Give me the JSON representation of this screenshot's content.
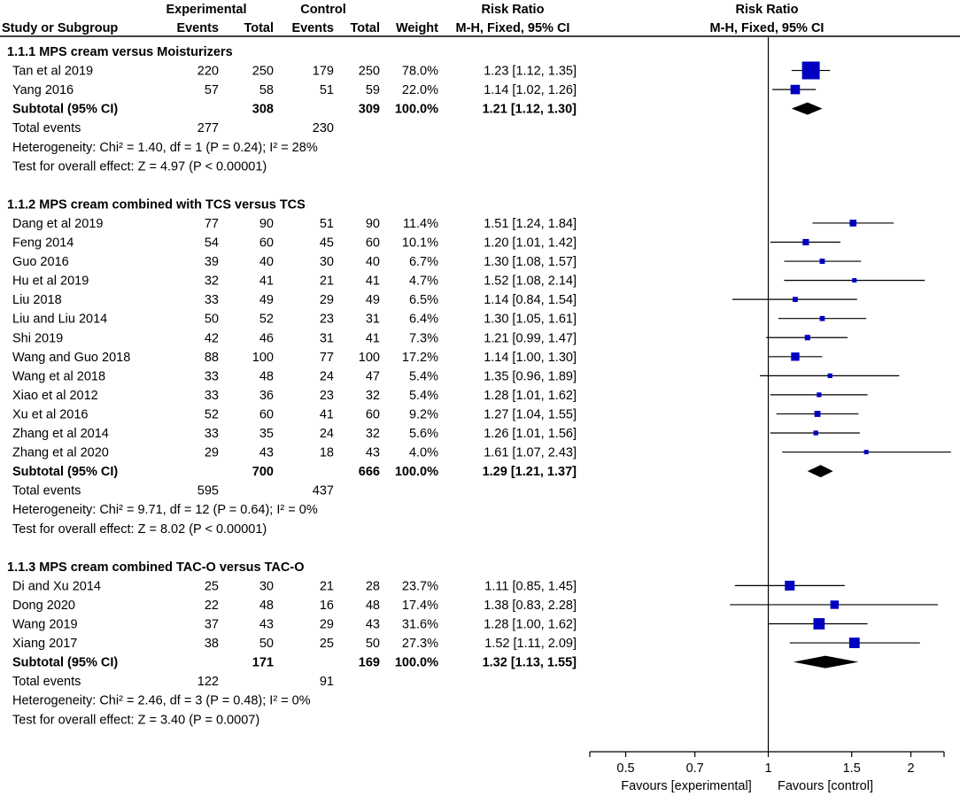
{
  "header": {
    "experimental": "Experimental",
    "control": "Control",
    "risk_ratio_table": "Risk Ratio",
    "risk_ratio_plot": "Risk Ratio",
    "study_or_subgroup": "Study or Subgroup",
    "events": "Events",
    "total": "Total",
    "weight": "Weight",
    "method_table": "M-H, Fixed, 95% CI",
    "method_plot": "M-H, Fixed, 95% CI"
  },
  "chart_data": {
    "type": "forest",
    "scale": "log",
    "xlim": [
      0.42,
      2.35
    ],
    "null_value": 1,
    "x_ticks": [
      "0.5",
      "0.7",
      "1",
      "1.5",
      "2"
    ],
    "x_tick_values": [
      0.5,
      0.7,
      1,
      1.5,
      2
    ],
    "favours_left": "Favours [experimental]",
    "favours_right": "Favours [control]",
    "rows": [
      {
        "kind": "heading",
        "label": "1.1.1 MPS cream versus Moisturizers"
      },
      {
        "kind": "study",
        "label": "Tan et al 2019",
        "e_events": "220",
        "e_total": "250",
        "c_events": "179",
        "c_total": "250",
        "weight": "78.0%",
        "ci": "1.23 [1.12, 1.35]",
        "rr": 1.23,
        "lo": 1.12,
        "hi": 1.35,
        "w": 78.0
      },
      {
        "kind": "study",
        "label": "Yang 2016",
        "e_events": "57",
        "e_total": "58",
        "c_events": "51",
        "c_total": "59",
        "weight": "22.0%",
        "ci": "1.14 [1.02, 1.26]",
        "rr": 1.14,
        "lo": 1.02,
        "hi": 1.26,
        "w": 22.0
      },
      {
        "kind": "subtotal",
        "label": "Subtotal (95% CI)",
        "e_total": "308",
        "c_total": "309",
        "weight": "100.0%",
        "ci": "1.21 [1.12, 1.30]",
        "rr": 1.21,
        "lo": 1.12,
        "hi": 1.3
      },
      {
        "kind": "events",
        "label": "Total events",
        "e_events": "277",
        "c_events": "230"
      },
      {
        "kind": "note",
        "label": "Heterogeneity: Chi² = 1.40, df = 1 (P = 0.24); I² = 28%"
      },
      {
        "kind": "note",
        "label": "Test for overall effect: Z = 4.97 (P < 0.00001)"
      },
      {
        "kind": "blank"
      },
      {
        "kind": "heading",
        "label": "1.1.2 MPS cream combined with TCS versus TCS"
      },
      {
        "kind": "study",
        "label": "Dang et al 2019",
        "e_events": "77",
        "e_total": "90",
        "c_events": "51",
        "c_total": "90",
        "weight": "11.4%",
        "ci": "1.51 [1.24, 1.84]",
        "rr": 1.51,
        "lo": 1.24,
        "hi": 1.84,
        "w": 11.4
      },
      {
        "kind": "study",
        "label": "Feng 2014",
        "e_events": "54",
        "e_total": "60",
        "c_events": "45",
        "c_total": "60",
        "weight": "10.1%",
        "ci": "1.20 [1.01, 1.42]",
        "rr": 1.2,
        "lo": 1.01,
        "hi": 1.42,
        "w": 10.1
      },
      {
        "kind": "study",
        "label": "Guo 2016",
        "e_events": "39",
        "e_total": "40",
        "c_events": "30",
        "c_total": "40",
        "weight": "6.7%",
        "ci": "1.30 [1.08, 1.57]",
        "rr": 1.3,
        "lo": 1.08,
        "hi": 1.57,
        "w": 6.7
      },
      {
        "kind": "study",
        "label": "Hu et al 2019",
        "e_events": "32",
        "e_total": "41",
        "c_events": "21",
        "c_total": "41",
        "weight": "4.7%",
        "ci": "1.52 [1.08, 2.14]",
        "rr": 1.52,
        "lo": 1.08,
        "hi": 2.14,
        "w": 4.7
      },
      {
        "kind": "study",
        "label": "Liu 2018",
        "e_events": "33",
        "e_total": "49",
        "c_events": "29",
        "c_total": "49",
        "weight": "6.5%",
        "ci": "1.14 [0.84, 1.54]",
        "rr": 1.14,
        "lo": 0.84,
        "hi": 1.54,
        "w": 6.5
      },
      {
        "kind": "study",
        "label": "Liu and Liu 2014",
        "e_events": "50",
        "e_total": "52",
        "c_events": "23",
        "c_total": "31",
        "weight": "6.4%",
        "ci": "1.30 [1.05, 1.61]",
        "rr": 1.3,
        "lo": 1.05,
        "hi": 1.61,
        "w": 6.4
      },
      {
        "kind": "study",
        "label": "Shi 2019",
        "e_events": "42",
        "e_total": "46",
        "c_events": "31",
        "c_total": "41",
        "weight": "7.3%",
        "ci": "1.21 [0.99, 1.47]",
        "rr": 1.21,
        "lo": 0.99,
        "hi": 1.47,
        "w": 7.3
      },
      {
        "kind": "study",
        "label": "Wang and Guo 2018",
        "e_events": "88",
        "e_total": "100",
        "c_events": "77",
        "c_total": "100",
        "weight": "17.2%",
        "ci": "1.14 [1.00, 1.30]",
        "rr": 1.14,
        "lo": 1.0,
        "hi": 1.3,
        "w": 17.2
      },
      {
        "kind": "study",
        "label": "Wang et al 2018",
        "e_events": "33",
        "e_total": "48",
        "c_events": "24",
        "c_total": "47",
        "weight": "5.4%",
        "ci": "1.35 [0.96, 1.89]",
        "rr": 1.35,
        "lo": 0.96,
        "hi": 1.89,
        "w": 5.4
      },
      {
        "kind": "study",
        "label": "Xiao et al 2012",
        "e_events": "33",
        "e_total": "36",
        "c_events": "23",
        "c_total": "32",
        "weight": "5.4%",
        "ci": "1.28 [1.01, 1.62]",
        "rr": 1.28,
        "lo": 1.01,
        "hi": 1.62,
        "w": 5.4
      },
      {
        "kind": "study",
        "label": "Xu et al 2016",
        "e_events": "52",
        "e_total": "60",
        "c_events": "41",
        "c_total": "60",
        "weight": "9.2%",
        "ci": "1.27 [1.04, 1.55]",
        "rr": 1.27,
        "lo": 1.04,
        "hi": 1.55,
        "w": 9.2
      },
      {
        "kind": "study",
        "label": "Zhang et al 2014",
        "e_events": "33",
        "e_total": "35",
        "c_events": "24",
        "c_total": "32",
        "weight": "5.6%",
        "ci": "1.26 [1.01, 1.56]",
        "rr": 1.26,
        "lo": 1.01,
        "hi": 1.56,
        "w": 5.6
      },
      {
        "kind": "study",
        "label": "Zhang et al 2020",
        "e_events": "29",
        "e_total": "43",
        "c_events": "18",
        "c_total": "43",
        "weight": "4.0%",
        "ci": "1.61 [1.07, 2.43]",
        "rr": 1.61,
        "lo": 1.07,
        "hi": 2.43,
        "w": 4.0
      },
      {
        "kind": "subtotal",
        "label": "Subtotal (95% CI)",
        "e_total": "700",
        "c_total": "666",
        "weight": "100.0%",
        "ci": "1.29 [1.21, 1.37]",
        "rr": 1.29,
        "lo": 1.21,
        "hi": 1.37
      },
      {
        "kind": "events",
        "label": "Total events",
        "e_events": "595",
        "c_events": "437"
      },
      {
        "kind": "note",
        "label": "Heterogeneity: Chi² = 9.71, df = 12 (P = 0.64); I² = 0%"
      },
      {
        "kind": "note",
        "label": "Test for overall effect: Z = 8.02 (P < 0.00001)"
      },
      {
        "kind": "blank"
      },
      {
        "kind": "heading",
        "label": "1.1.3 MPS cream combined TAC-O versus TAC-O"
      },
      {
        "kind": "study",
        "label": "Di and Xu 2014",
        "e_events": "25",
        "e_total": "30",
        "c_events": "21",
        "c_total": "28",
        "weight": "23.7%",
        "ci": "1.11 [0.85, 1.45]",
        "rr": 1.11,
        "lo": 0.85,
        "hi": 1.45,
        "w": 23.7
      },
      {
        "kind": "study",
        "label": "Dong 2020",
        "e_events": "22",
        "e_total": "48",
        "c_events": "16",
        "c_total": "48",
        "weight": "17.4%",
        "ci": "1.38 [0.83, 2.28]",
        "rr": 1.38,
        "lo": 0.83,
        "hi": 2.28,
        "w": 17.4
      },
      {
        "kind": "study",
        "label": "Wang 2019",
        "e_events": "37",
        "e_total": "43",
        "c_events": "29",
        "c_total": "43",
        "weight": "31.6%",
        "ci": "1.28 [1.00, 1.62]",
        "rr": 1.28,
        "lo": 1.0,
        "hi": 1.62,
        "w": 31.6
      },
      {
        "kind": "study",
        "label": "Xiang 2017",
        "e_events": "38",
        "e_total": "50",
        "c_events": "25",
        "c_total": "50",
        "weight": "27.3%",
        "ci": "1.52 [1.11, 2.09]",
        "rr": 1.52,
        "lo": 1.11,
        "hi": 2.09,
        "w": 27.3
      },
      {
        "kind": "subtotal",
        "label": "Subtotal (95% CI)",
        "e_total": "171",
        "c_total": "169",
        "weight": "100.0%",
        "ci": "1.32 [1.13, 1.55]",
        "rr": 1.32,
        "lo": 1.13,
        "hi": 1.55
      },
      {
        "kind": "events",
        "label": "Total events",
        "e_events": "122",
        "c_events": "91"
      },
      {
        "kind": "note",
        "label": "Heterogeneity: Chi² = 2.46, df = 3 (P = 0.48); I² = 0%"
      },
      {
        "kind": "note",
        "label": "Test for overall effect: Z = 3.40 (P = 0.0007)"
      }
    ],
    "colors": {
      "marker": "#0000c0",
      "line": "#000000",
      "diamond": "#000000"
    }
  }
}
